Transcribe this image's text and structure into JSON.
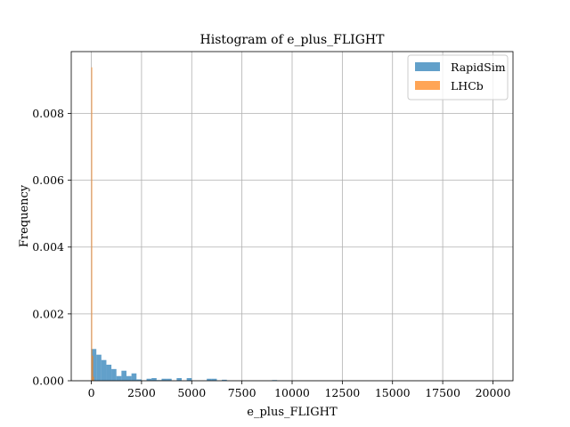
{
  "chart_data": {
    "type": "bar",
    "title": "Histogram of e_plus_FLIGHT",
    "xlabel": "e_plus_FLIGHT",
    "ylabel": "Frequency",
    "xlim": [
      -1000,
      21000
    ],
    "ylim": [
      0,
      0.00985
    ],
    "xticks": [
      0,
      2500,
      5000,
      7500,
      10000,
      12500,
      15000,
      17500,
      20000
    ],
    "xtick_labels": [
      "0",
      "2500",
      "5000",
      "7500",
      "10000",
      "12500",
      "15000",
      "17500",
      "20000"
    ],
    "yticks": [
      0,
      0.002,
      0.004,
      0.006,
      0.008
    ],
    "ytick_labels": [
      "0.000",
      "0.002",
      "0.004",
      "0.006",
      "0.008"
    ],
    "grid": true,
    "legend": {
      "placement": "top-right",
      "entries": [
        "RapidSim",
        "LHCb"
      ]
    },
    "bin_width": 250,
    "series": [
      {
        "name": "RapidSim",
        "color": "#1f77b4",
        "opacity": 0.7,
        "bins": [
          {
            "x": 0,
            "y": 0.00095
          },
          {
            "x": 250,
            "y": 0.00078
          },
          {
            "x": 500,
            "y": 0.00062
          },
          {
            "x": 750,
            "y": 0.00048
          },
          {
            "x": 1000,
            "y": 0.00035
          },
          {
            "x": 1250,
            "y": 0.00014
          },
          {
            "x": 1500,
            "y": 0.0003
          },
          {
            "x": 1750,
            "y": 0.00014
          },
          {
            "x": 2000,
            "y": 0.00022
          },
          {
            "x": 2250,
            "y": 4e-05
          },
          {
            "x": 2750,
            "y": 6e-05
          },
          {
            "x": 3000,
            "y": 8e-05
          },
          {
            "x": 3250,
            "y": 2e-05
          },
          {
            "x": 3500,
            "y": 6e-05
          },
          {
            "x": 3750,
            "y": 6e-05
          },
          {
            "x": 4250,
            "y": 8e-05
          },
          {
            "x": 4750,
            "y": 8e-05
          },
          {
            "x": 5750,
            "y": 6e-05
          },
          {
            "x": 6000,
            "y": 6e-05
          },
          {
            "x": 6500,
            "y": 3e-05
          },
          {
            "x": 9000,
            "y": 2e-05
          }
        ]
      },
      {
        "name": "LHCb",
        "color": "#ff7f0e",
        "opacity": 0.7,
        "bins": [
          {
            "x": 0,
            "y": 0.00938
          },
          {
            "x": 45,
            "y": 0.00075
          },
          {
            "x": 90,
            "y": 0.00012
          }
        ],
        "bin_width": 45
      }
    ]
  }
}
